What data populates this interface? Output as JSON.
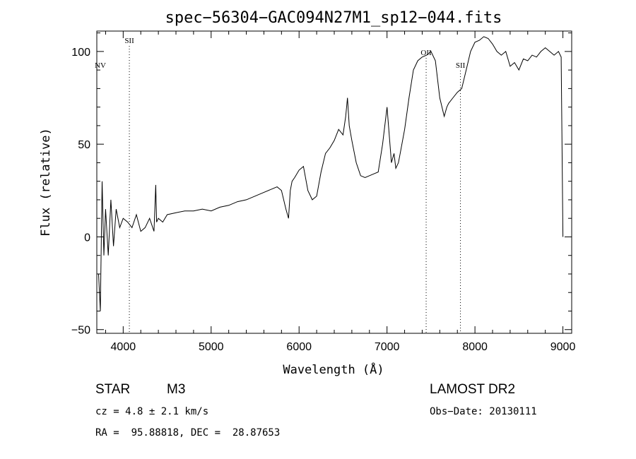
{
  "chart_data": {
    "type": "line",
    "title": "spec−56304−GAC094N27M1_sp12−044.fits",
    "xlabel": "Wavelength (Å)",
    "ylabel": "Flux (relative)",
    "xlim": [
      3700,
      9100
    ],
    "ylim": [
      -52,
      111
    ],
    "grid": false,
    "x_ticks": [
      4000,
      5000,
      6000,
      7000,
      8000,
      9000
    ],
    "y_ticks": [
      -50,
      0,
      50,
      100
    ],
    "x_tick_labels": [
      "4000",
      "5000",
      "6000",
      "7000",
      "8000",
      "9000"
    ],
    "y_tick_labels": [
      "−50",
      "0",
      "50",
      "100"
    ],
    "line_markers": [
      {
        "label": "NV",
        "x": 3740,
        "dotted": false
      },
      {
        "label": "SII",
        "x": 4070,
        "dotted": true
      },
      {
        "label": "OII",
        "x": 7445,
        "dotted": true
      },
      {
        "label": "SII",
        "x": 7835,
        "dotted": true
      }
    ],
    "series": [
      {
        "x": [
          3720,
          3740,
          3760,
          3780,
          3800,
          3830,
          3860,
          3890,
          3920,
          3960,
          4000,
          4050,
          4100,
          4150,
          4200,
          4250,
          4300,
          4350,
          4370,
          4380,
          4400,
          4450,
          4500,
          4600,
          4700,
          4800,
          4900,
          5000,
          5100,
          5200,
          5300,
          5400,
          5500,
          5600,
          5700,
          5750,
          5800,
          5850,
          5880,
          5900,
          5920,
          5950,
          6000,
          6050,
          6100,
          6150,
          6200,
          6250,
          6300,
          6350,
          6400,
          6450,
          6500,
          6530,
          6550,
          6570,
          6600,
          6650,
          6700,
          6750,
          6800,
          6850,
          6900,
          6950,
          7000,
          7050,
          7080,
          7100,
          7130,
          7150,
          7200,
          7250,
          7300,
          7350,
          7400,
          7450,
          7500,
          7550,
          7600,
          7650,
          7680,
          7700,
          7750,
          7800,
          7850,
          7900,
          7950,
          8000,
          8050,
          8100,
          8150,
          8200,
          8250,
          8300,
          8350,
          8400,
          8450,
          8500,
          8550,
          8600,
          8650,
          8700,
          8750,
          8800,
          8850,
          8900,
          8950,
          8980,
          9000
        ],
        "values": [
          -20,
          -40,
          30,
          -10,
          15,
          -10,
          20,
          -5,
          15,
          5,
          10,
          8,
          5,
          12,
          3,
          5,
          10,
          3,
          28,
          8,
          10,
          8,
          12,
          13,
          14,
          14,
          15,
          14,
          16,
          17,
          19,
          20,
          22,
          24,
          26,
          27,
          25,
          15,
          10,
          25,
          30,
          32,
          36,
          38,
          25,
          20,
          22,
          35,
          45,
          48,
          52,
          58,
          55,
          65,
          75,
          60,
          52,
          40,
          33,
          32,
          33,
          34,
          35,
          50,
          70,
          40,
          45,
          37,
          40,
          45,
          58,
          75,
          90,
          95,
          97,
          98,
          100,
          95,
          75,
          65,
          70,
          72,
          75,
          78,
          80,
          90,
          100,
          105,
          106,
          108,
          107,
          104,
          100,
          98,
          100,
          92,
          94,
          90,
          96,
          95,
          98,
          97,
          100,
          102,
          100,
          98,
          100,
          97,
          0
        ]
      }
    ]
  },
  "info": {
    "object_type": "STAR",
    "subclass": "M3",
    "survey": "LAMOST DR2",
    "redshift": "cz = 4.8 ± 2.1 km/s",
    "obs_date": "Obs−Date: 20130111",
    "coords": "RA =  95.88818, DEC =  28.87653"
  }
}
